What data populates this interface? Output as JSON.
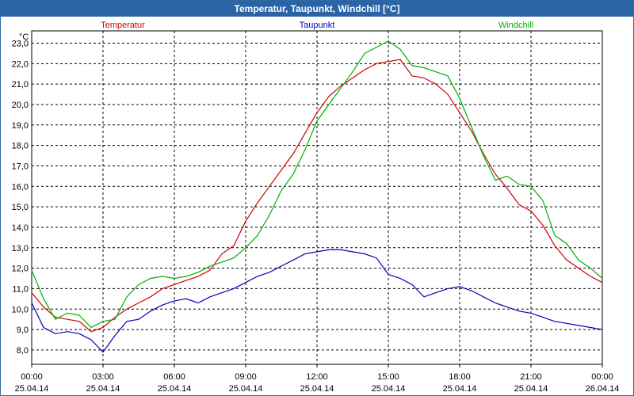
{
  "window": {
    "title": "Temperatur, Taupunkt, Windchill [°C]"
  },
  "chart_data": {
    "type": "line",
    "title": "Temperatur, Taupunkt, Windchill [°C]",
    "ylabel": "°C",
    "xlabel": "",
    "ylim": [
      7.3,
      23.6
    ],
    "xlim": [
      0,
      24
    ],
    "grid": true,
    "y_ticks": [
      "8,0",
      "9,0",
      "10,0",
      "11,0",
      "12,0",
      "13,0",
      "14,0",
      "15,0",
      "16,0",
      "17,0",
      "18,0",
      "19,0",
      "20,0",
      "21,0",
      "22,0",
      "23,0"
    ],
    "x_ticks": [
      {
        "time": "00:00",
        "date": "25.04.14"
      },
      {
        "time": "03:00",
        "date": "25.04.14"
      },
      {
        "time": "06:00",
        "date": "25.04.14"
      },
      {
        "time": "09:00",
        "date": "25.04.14"
      },
      {
        "time": "12:00",
        "date": "25.04.14"
      },
      {
        "time": "15:00",
        "date": "25.04.14"
      },
      {
        "time": "18:00",
        "date": "25.04.14"
      },
      {
        "time": "21:00",
        "date": "25.04.14"
      },
      {
        "time": "00:00",
        "date": "26.04.14"
      }
    ],
    "series": [
      {
        "name": "Temperatur",
        "color": "#d00000",
        "x": [
          0,
          0.5,
          1,
          1.5,
          2,
          2.5,
          3,
          3.5,
          4,
          4.5,
          5,
          5.5,
          6,
          6.5,
          7,
          7.5,
          8,
          8.5,
          9,
          9.5,
          10,
          10.5,
          11,
          11.5,
          12,
          12.5,
          13,
          13.5,
          14,
          14.5,
          15,
          15.5,
          16,
          16.5,
          17,
          17.5,
          18,
          18.5,
          19,
          19.5,
          20,
          20.5,
          21,
          21.5,
          22,
          22.5,
          23,
          23.5,
          24
        ],
        "values": [
          10.8,
          10.1,
          9.6,
          9.5,
          9.4,
          8.9,
          9.1,
          9.6,
          10.0,
          10.3,
          10.6,
          11.0,
          11.2,
          11.4,
          11.6,
          11.9,
          12.7,
          13.1,
          14.3,
          15.2,
          16.0,
          16.8,
          17.6,
          18.6,
          19.6,
          20.4,
          20.9,
          21.3,
          21.7,
          22.0,
          22.1,
          22.2,
          21.4,
          21.3,
          21.0,
          20.5,
          19.6,
          18.7,
          17.6,
          16.6,
          15.9,
          15.1,
          14.8,
          14.1,
          13.1,
          12.4,
          12.0,
          11.6,
          11.3
        ]
      },
      {
        "name": "Taupunkt",
        "color": "#0000c0",
        "x": [
          0,
          0.5,
          1,
          1.5,
          2,
          2.5,
          3,
          3.5,
          4,
          4.5,
          5,
          5.5,
          6,
          6.5,
          7,
          7.5,
          8,
          8.5,
          9,
          9.5,
          10,
          10.5,
          11,
          11.5,
          12,
          12.5,
          13,
          13.5,
          14,
          14.5,
          15,
          15.5,
          16,
          16.5,
          17,
          17.5,
          18,
          18.5,
          19,
          19.5,
          20,
          20.5,
          21,
          21.5,
          22,
          22.5,
          23,
          23.5,
          24
        ],
        "values": [
          10.3,
          9.1,
          8.8,
          8.9,
          8.8,
          8.5,
          7.9,
          8.7,
          9.4,
          9.5,
          9.9,
          10.2,
          10.4,
          10.5,
          10.3,
          10.6,
          10.8,
          11.0,
          11.3,
          11.6,
          11.8,
          12.1,
          12.4,
          12.7,
          12.8,
          12.9,
          12.9,
          12.8,
          12.7,
          12.5,
          11.7,
          11.5,
          11.2,
          10.6,
          10.8,
          11.0,
          11.1,
          10.9,
          10.6,
          10.3,
          10.1,
          9.9,
          9.8,
          9.6,
          9.4,
          9.3,
          9.2,
          9.1,
          9.0
        ]
      },
      {
        "name": "Windchill",
        "color": "#00b000",
        "x": [
          0,
          0.5,
          1,
          1.5,
          2,
          2.5,
          3,
          3.5,
          4,
          4.5,
          5,
          5.5,
          6,
          6.5,
          7,
          7.5,
          8,
          8.5,
          9,
          9.5,
          10,
          10.5,
          11,
          11.5,
          12,
          12.5,
          13,
          13.5,
          14,
          14.5,
          15,
          15.5,
          16,
          16.5,
          17,
          17.5,
          18,
          18.5,
          19,
          19.5,
          20,
          20.5,
          21,
          21.5,
          22,
          22.5,
          23,
          23.5,
          24
        ],
        "values": [
          11.9,
          10.5,
          9.5,
          9.8,
          9.7,
          9.1,
          9.4,
          9.5,
          10.6,
          11.2,
          11.5,
          11.6,
          11.5,
          11.6,
          11.8,
          12.1,
          12.3,
          12.5,
          13.0,
          13.6,
          14.6,
          15.8,
          16.6,
          17.8,
          19.2,
          20.0,
          20.8,
          21.6,
          22.5,
          22.8,
          23.1,
          22.7,
          21.9,
          21.8,
          21.6,
          21.4,
          20.3,
          18.9,
          17.5,
          16.3,
          16.5,
          16.1,
          16.0,
          15.3,
          13.6,
          13.2,
          12.4,
          12.0,
          11.5
        ]
      }
    ]
  }
}
